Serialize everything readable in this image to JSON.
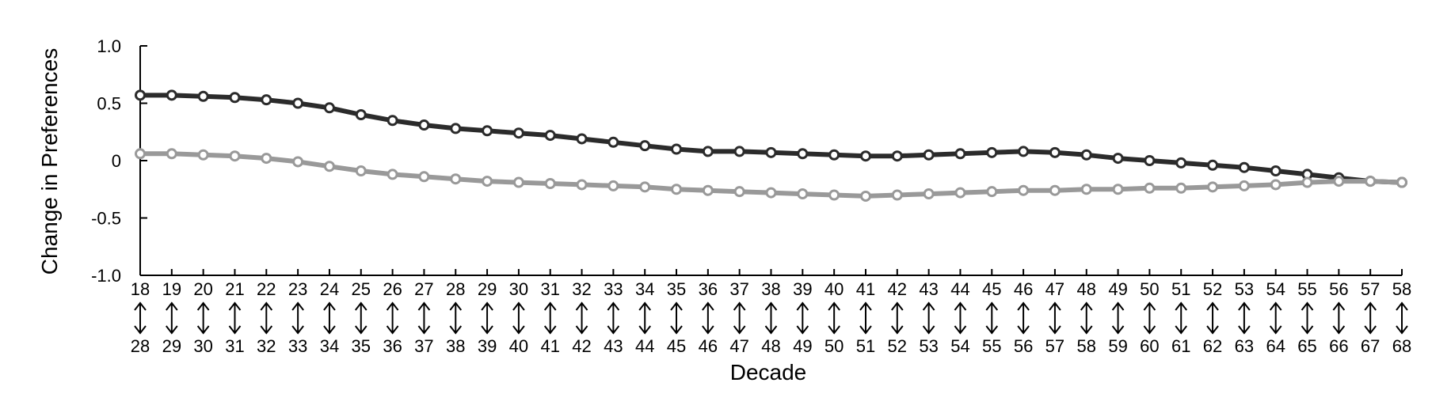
{
  "chart_data": {
    "type": "line",
    "title": "",
    "xlabel": "Decade",
    "ylabel": "Change in Preferences",
    "ylim": [
      -1.0,
      1.0
    ],
    "yticks": [
      1.0,
      0.5,
      0,
      -0.5,
      -1.0
    ],
    "ytick_labels": [
      "1.0",
      "0.5",
      "0",
      "-0.5",
      "-1.0"
    ],
    "x_start": [
      18,
      19,
      20,
      21,
      22,
      23,
      24,
      25,
      26,
      27,
      28,
      29,
      30,
      31,
      32,
      33,
      34,
      35,
      36,
      37,
      38,
      39,
      40,
      41,
      42,
      43,
      44,
      45,
      46,
      47,
      48,
      49,
      50,
      51,
      52,
      53,
      54,
      55,
      56,
      57,
      58
    ],
    "x_end": [
      28,
      29,
      30,
      31,
      32,
      33,
      34,
      35,
      36,
      37,
      38,
      39,
      40,
      41,
      42,
      43,
      44,
      45,
      46,
      47,
      48,
      49,
      50,
      51,
      52,
      53,
      54,
      55,
      56,
      57,
      58,
      59,
      60,
      61,
      62,
      63,
      64,
      65,
      66,
      67,
      68
    ],
    "series": [
      {
        "color": "#2b2b2b",
        "values": [
          0.57,
          0.57,
          0.56,
          0.55,
          0.53,
          0.5,
          0.46,
          0.4,
          0.35,
          0.31,
          0.28,
          0.26,
          0.24,
          0.22,
          0.19,
          0.16,
          0.13,
          0.1,
          0.08,
          0.08,
          0.07,
          0.06,
          0.05,
          0.04,
          0.04,
          0.05,
          0.06,
          0.07,
          0.08,
          0.07,
          0.05,
          0.02,
          0.0,
          -0.02,
          -0.04,
          -0.06,
          -0.09,
          -0.12,
          -0.15,
          -0.18,
          -0.19
        ]
      },
      {
        "color": "#999999",
        "values": [
          0.06,
          0.06,
          0.05,
          0.04,
          0.02,
          -0.01,
          -0.05,
          -0.09,
          -0.12,
          -0.14,
          -0.16,
          -0.18,
          -0.19,
          -0.2,
          -0.21,
          -0.22,
          -0.23,
          -0.25,
          -0.26,
          -0.27,
          -0.28,
          -0.29,
          -0.3,
          -0.31,
          -0.3,
          -0.29,
          -0.28,
          -0.27,
          -0.26,
          -0.26,
          -0.25,
          -0.25,
          -0.24,
          -0.24,
          -0.23,
          -0.22,
          -0.21,
          -0.19,
          -0.18,
          -0.18,
          -0.19
        ]
      }
    ],
    "grid": false,
    "legend": "none"
  }
}
